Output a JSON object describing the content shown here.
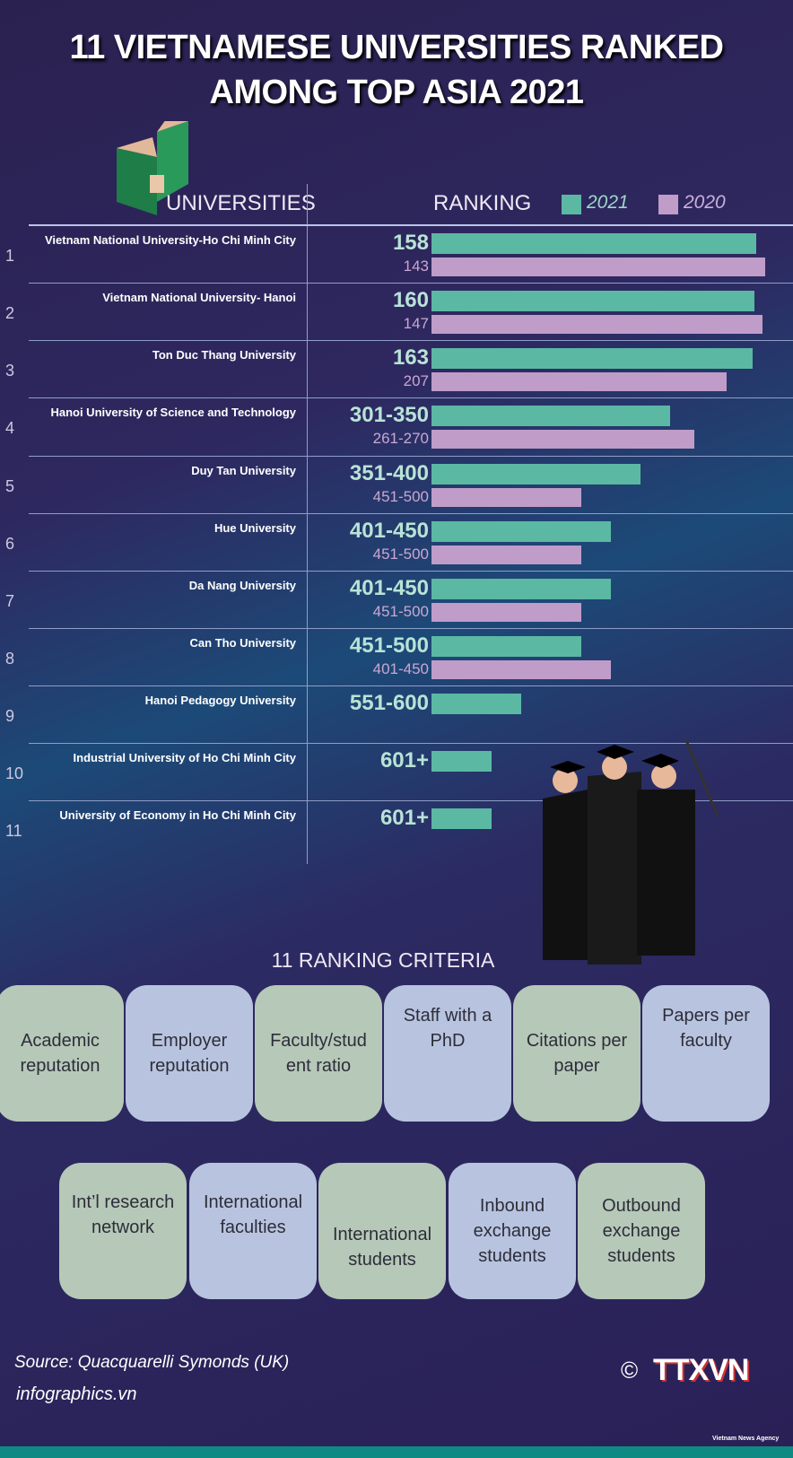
{
  "title_line1": "11 VIETNAMESE UNIVERSITIES RANKED",
  "title_line2": "AMONG TOP ASIA 2021",
  "chart_data": {
    "type": "bar",
    "title": "11 VIETNAMESE UNIVERSITIES RANKED AMONG TOP ASIA 2021",
    "col_universities": "UNIVERSITIES",
    "col_ranking": "RANKING",
    "legend": [
      {
        "label": "2021",
        "color": "#5bb8a3"
      },
      {
        "label": "2020",
        "color": "#c09cc9"
      }
    ],
    "note": "bar length inversely reflects rank (fraction of max bar)",
    "rows": [
      {
        "num": "1",
        "name": "Vietnam National University-Ho Chi Minh City",
        "r2021": "158",
        "f2021": 0.973,
        "r2020": "143",
        "f2020": 1.0
      },
      {
        "num": "2",
        "name": "Vietnam National University- Hanoi",
        "r2021": "160",
        "f2021": 0.968,
        "r2020": "147",
        "f2020": 0.992
      },
      {
        "num": "3",
        "name": "Ton Duc Thang University",
        "r2021": "163",
        "f2021": 0.962,
        "r2020": "207",
        "f2020": 0.884
      },
      {
        "num": "4",
        "name": "Hanoi University of Science and Technology",
        "r2021": "301-350",
        "f2021": 0.715,
        "r2020": "261-270",
        "f2020": 0.788
      },
      {
        "num": "5",
        "name": "Duy Tan University",
        "r2021": "351-400",
        "f2021": 0.626,
        "r2020": "451-500",
        "f2020": 0.449
      },
      {
        "num": "6",
        "name": "Hue University",
        "r2021": "401-450",
        "f2021": 0.538,
        "r2020": "451-500",
        "f2020": 0.449
      },
      {
        "num": "7",
        "name": "Da Nang University",
        "r2021": "401-450",
        "f2021": 0.538,
        "r2020": "451-500",
        "f2020": 0.449
      },
      {
        "num": "8",
        "name": "Can Tho University",
        "r2021": "451-500",
        "f2021": 0.449,
        "r2020": "401-450",
        "f2020": 0.538
      },
      {
        "num": "9",
        "name": "Hanoi Pedagogy University",
        "r2021": "551-600",
        "f2021": 0.269,
        "r2020": null,
        "f2020": null
      },
      {
        "num": "10",
        "name": "Industrial University of Ho Chi Minh City",
        "r2021": "601+",
        "f2021": 0.18,
        "r2020": null,
        "f2020": null
      },
      {
        "num": "11",
        "name": "University of Economy in Ho Chi Minh City",
        "r2021": "601+",
        "f2021": 0.18,
        "r2020": null,
        "f2020": null
      }
    ]
  },
  "criteria_title": "11 RANKING CRITERIA",
  "criteria": [
    "Academic reputation",
    "Employer reputation",
    "Faculty/stud ent ratio",
    "Staff with a PhD",
    "Citations per paper",
    "Papers per faculty",
    "Int’l research network",
    "International faculties",
    "International students",
    "Inbound exchange students",
    "Outbound exchange students"
  ],
  "source": "Source: Quacquarelli Symonds (UK)",
  "site": "infographics.vn",
  "copyright": "©",
  "logo": "TTXVN",
  "logo_sub": "Vietnam News Agency"
}
